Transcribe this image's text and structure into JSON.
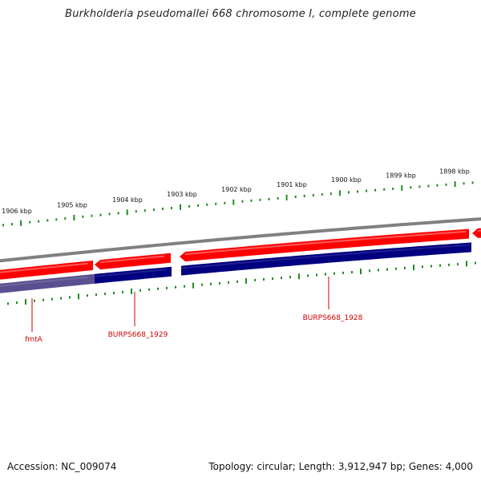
{
  "title": "Burkholderia pseudomallei 668 chromosome I, complete genome",
  "footer": {
    "accession": "Accession: NC_009074",
    "summary": "Topology: circular; Length: 3,912,947 bp; Genes: 4,000"
  },
  "scale_labels": [
    "1906 kbp",
    "1905 kbp",
    "1904 kbp",
    "1903 kbp",
    "1902 kbp",
    "1901 kbp",
    "1900 kbp",
    "1899 kbp",
    "1898 kbp"
  ],
  "genes": [
    {
      "name": "fmtA"
    },
    {
      "name": "BURPS668_1929"
    },
    {
      "name": "BURPS668_1928"
    }
  ],
  "colors": {
    "backbone": "#808080",
    "forward_strand": "#ff0000",
    "reverse_strand": "#000080",
    "reverse_strand_light": "#5a5090",
    "ticks": "#228b22",
    "gene_label": "#cc0000"
  }
}
